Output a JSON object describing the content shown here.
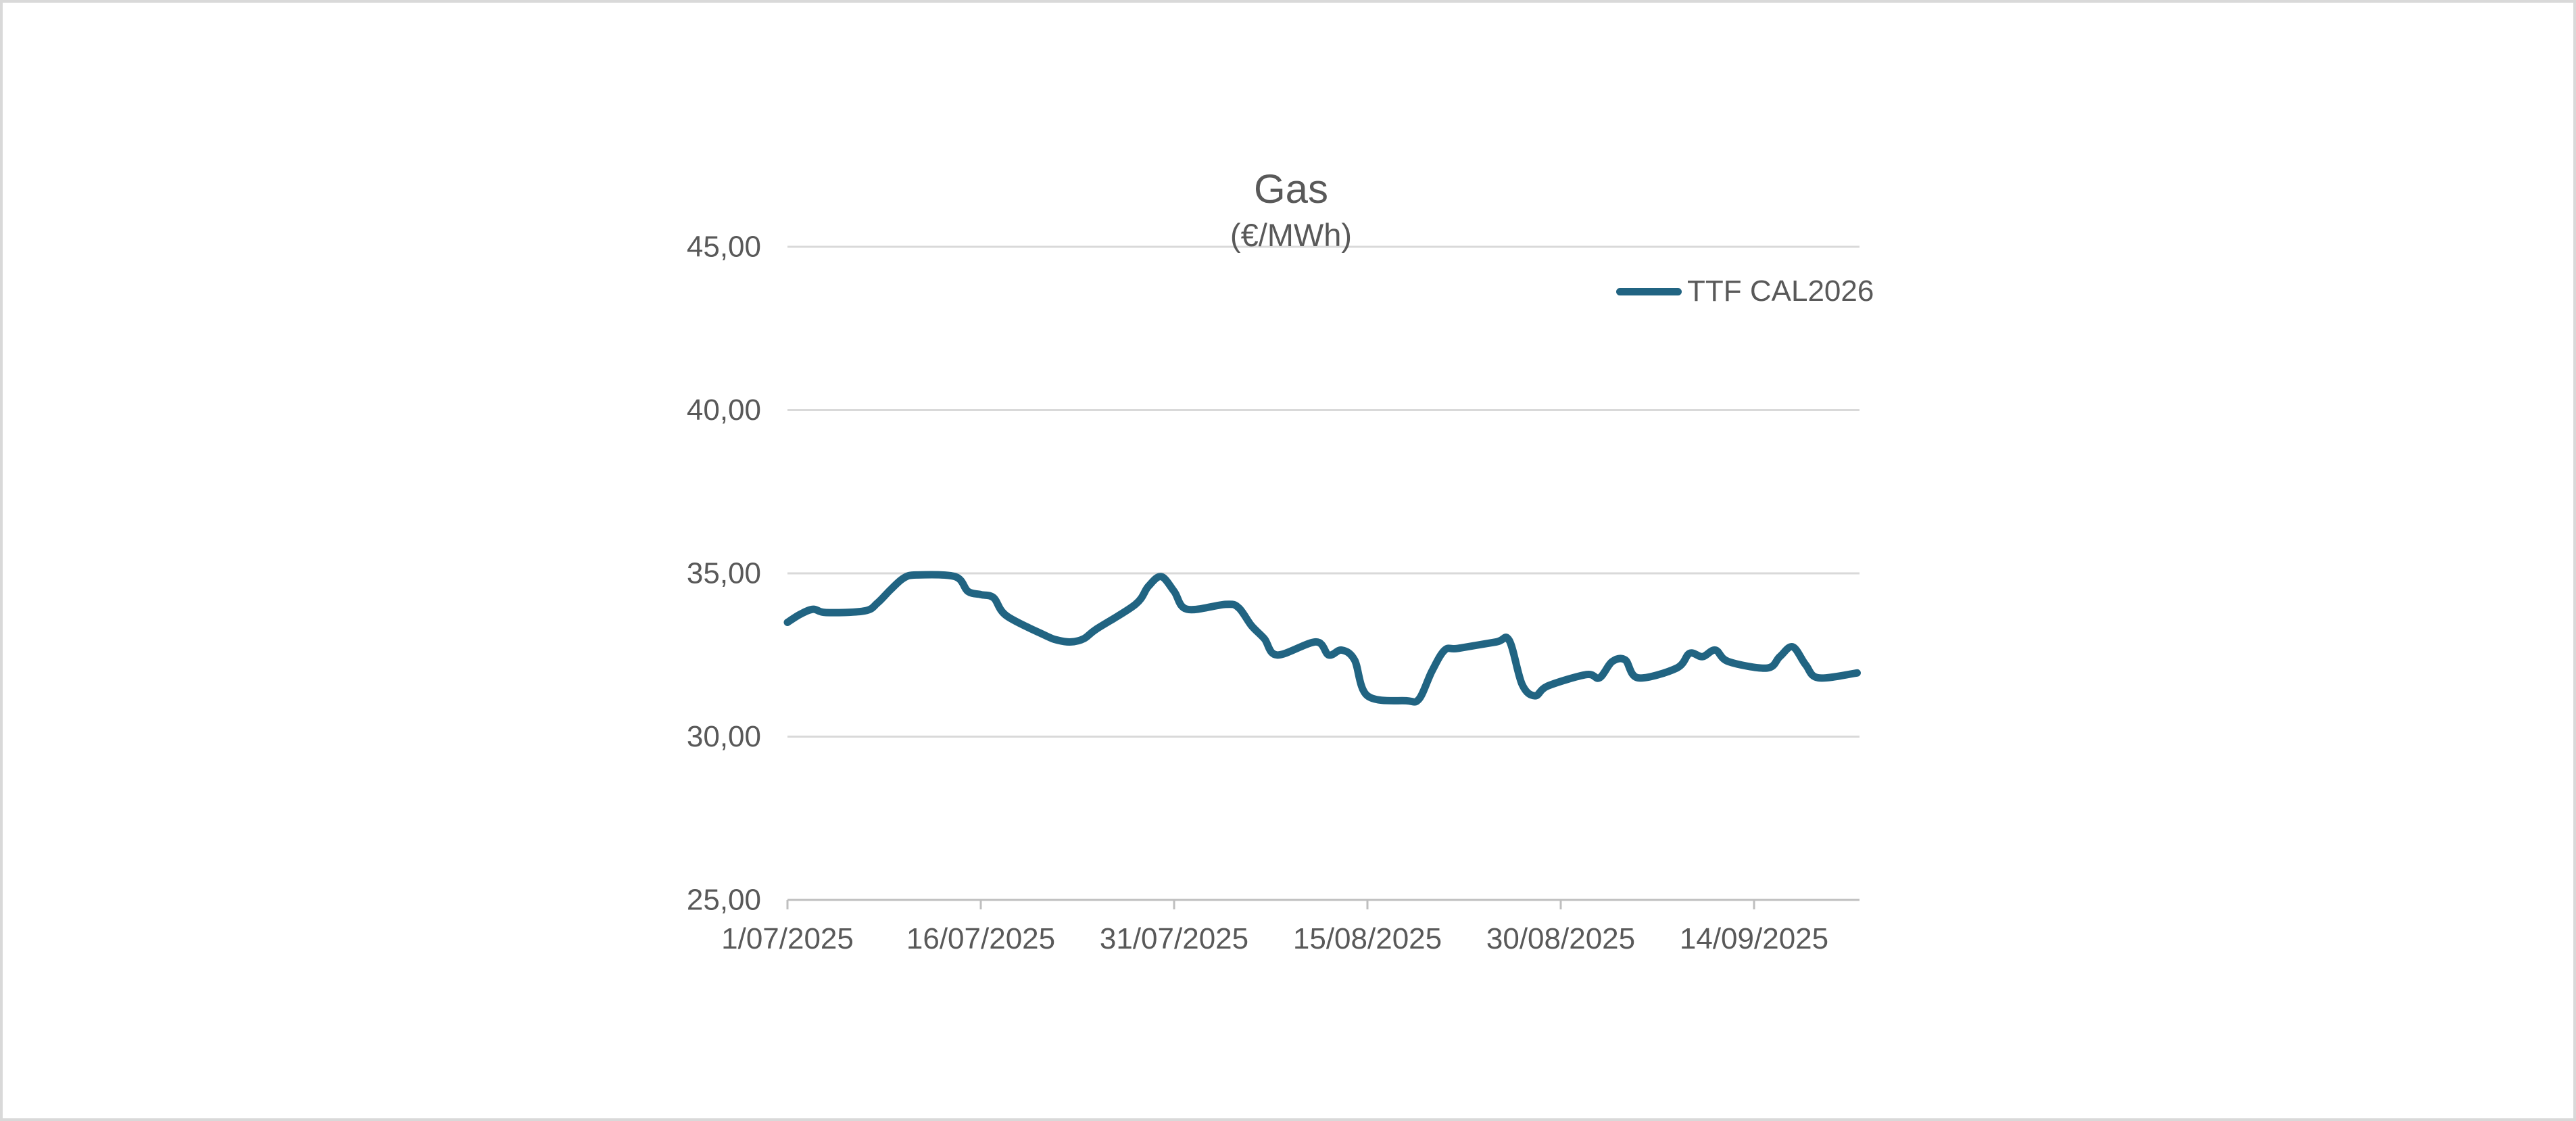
{
  "window": {
    "background": "#FFFFFF",
    "border_color": "#D9D9D9"
  },
  "chart": {
    "title": "Gas",
    "subtitle": "(€/MWh)",
    "text_color": "#595959",
    "gridline_color": "#D9D9D9",
    "axis_color": "#BFBFBF"
  },
  "chart_data": {
    "type": "line",
    "title": "Gas",
    "subtitle": "(€/MWh)",
    "unit": "€/MWh",
    "smooth": true,
    "grid": true,
    "legend_position": "top-right",
    "ylim": [
      25,
      45
    ],
    "y_ticks": [
      {
        "value": 45,
        "label": "45,00"
      },
      {
        "value": 40,
        "label": "40,00"
      },
      {
        "value": 35,
        "label": "35,00"
      },
      {
        "value": 30,
        "label": "30,00"
      },
      {
        "value": 25,
        "label": "25,00"
      }
    ],
    "x_ticks": [
      {
        "date": "2025-07-01",
        "label": "1/07/2025"
      },
      {
        "date": "2025-07-16",
        "label": "16/07/2025"
      },
      {
        "date": "2025-07-31",
        "label": "31/07/2025"
      },
      {
        "date": "2025-08-15",
        "label": "15/08/2025"
      },
      {
        "date": "2025-08-30",
        "label": "30/08/2025"
      },
      {
        "date": "2025-09-14",
        "label": "14/09/2025"
      }
    ],
    "series": [
      {
        "name": "TTF CAL2026",
        "color": "#216482",
        "line_width": 11,
        "points": [
          {
            "date": "2025-07-01",
            "value": 33.5
          },
          {
            "date": "2025-07-02",
            "value": 33.75
          },
          {
            "date": "2025-07-03",
            "value": 33.9
          },
          {
            "date": "2025-07-04",
            "value": 33.8
          },
          {
            "date": "2025-07-07",
            "value": 33.85
          },
          {
            "date": "2025-07-08",
            "value": 34.1
          },
          {
            "date": "2025-07-09",
            "value": 34.5
          },
          {
            "date": "2025-07-10",
            "value": 34.85
          },
          {
            "date": "2025-07-11",
            "value": 34.95
          },
          {
            "date": "2025-07-14",
            "value": 34.9
          },
          {
            "date": "2025-07-15",
            "value": 34.45
          },
          {
            "date": "2025-07-16",
            "value": 34.35
          },
          {
            "date": "2025-07-17",
            "value": 34.25
          },
          {
            "date": "2025-07-18",
            "value": 33.7
          },
          {
            "date": "2025-07-21",
            "value": 33.1
          },
          {
            "date": "2025-07-22",
            "value": 32.95
          },
          {
            "date": "2025-07-23",
            "value": 32.9
          },
          {
            "date": "2025-07-24",
            "value": 33.0
          },
          {
            "date": "2025-07-25",
            "value": 33.3
          },
          {
            "date": "2025-07-28",
            "value": 34.05
          },
          {
            "date": "2025-07-29",
            "value": 34.6
          },
          {
            "date": "2025-07-30",
            "value": 34.9
          },
          {
            "date": "2025-07-31",
            "value": 34.45
          },
          {
            "date": "2025-08-01",
            "value": 33.9
          },
          {
            "date": "2025-08-04",
            "value": 34.05
          },
          {
            "date": "2025-08-05",
            "value": 33.95
          },
          {
            "date": "2025-08-06",
            "value": 33.4
          },
          {
            "date": "2025-08-07",
            "value": 33.0
          },
          {
            "date": "2025-08-08",
            "value": 32.5
          },
          {
            "date": "2025-08-11",
            "value": 32.9
          },
          {
            "date": "2025-08-12",
            "value": 32.5
          },
          {
            "date": "2025-08-13",
            "value": 32.65
          },
          {
            "date": "2025-08-14",
            "value": 32.35
          },
          {
            "date": "2025-08-15",
            "value": 31.25
          },
          {
            "date": "2025-08-18",
            "value": 31.1
          },
          {
            "date": "2025-08-19",
            "value": 31.15
          },
          {
            "date": "2025-08-20",
            "value": 32.0
          },
          {
            "date": "2025-08-21",
            "value": 32.65
          },
          {
            "date": "2025-08-22",
            "value": 32.7
          },
          {
            "date": "2025-08-25",
            "value": 32.9
          },
          {
            "date": "2025-08-26",
            "value": 32.95
          },
          {
            "date": "2025-08-27",
            "value": 31.6
          },
          {
            "date": "2025-08-28",
            "value": 31.25
          },
          {
            "date": "2025-08-29",
            "value": 31.55
          },
          {
            "date": "2025-09-01",
            "value": 31.9
          },
          {
            "date": "2025-09-02",
            "value": 31.8
          },
          {
            "date": "2025-09-03",
            "value": 32.3
          },
          {
            "date": "2025-09-04",
            "value": 32.35
          },
          {
            "date": "2025-09-05",
            "value": 31.8
          },
          {
            "date": "2025-09-08",
            "value": 32.1
          },
          {
            "date": "2025-09-09",
            "value": 32.55
          },
          {
            "date": "2025-09-10",
            "value": 32.45
          },
          {
            "date": "2025-09-11",
            "value": 32.65
          },
          {
            "date": "2025-09-12",
            "value": 32.3
          },
          {
            "date": "2025-09-15",
            "value": 32.1
          },
          {
            "date": "2025-09-16",
            "value": 32.45
          },
          {
            "date": "2025-09-17",
            "value": 32.75
          },
          {
            "date": "2025-09-18",
            "value": 32.2
          },
          {
            "date": "2025-09-19",
            "value": 31.8
          },
          {
            "date": "2025-09-22",
            "value": 31.95
          }
        ]
      }
    ]
  }
}
